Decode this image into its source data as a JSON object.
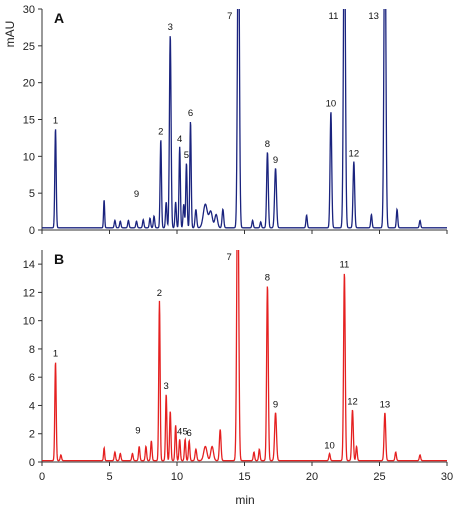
{
  "chart_data": {
    "type": "line",
    "ylabel": "mAU",
    "xlabel": "min",
    "xlim": [
      0,
      30
    ],
    "xticks": [
      0,
      5,
      10,
      15,
      20,
      25,
      30
    ],
    "grid": false,
    "panels": [
      {
        "label": "A",
        "color": "#1a237e",
        "ylim": [
          0,
          30
        ],
        "yticks": [
          0,
          5,
          10,
          15,
          20,
          25,
          30
        ],
        "baseline": 0.3,
        "peaks": [
          {
            "t": 1.0,
            "h": 13.5,
            "w": 0.05,
            "label": "1"
          },
          {
            "t": 4.6,
            "h": 3.8,
            "w": 0.04
          },
          {
            "t": 5.4,
            "h": 1.0,
            "w": 0.05
          },
          {
            "t": 5.8,
            "h": 0.9,
            "w": 0.05
          },
          {
            "t": 6.4,
            "h": 1.0,
            "w": 0.05
          },
          {
            "t": 7.0,
            "h": 0.9,
            "w": 0.05
          },
          {
            "t": 7.5,
            "h": 1.1,
            "w": 0.05
          },
          {
            "t": 8.0,
            "h": 1.3,
            "w": 0.05
          },
          {
            "t": 8.3,
            "h": 1.6,
            "w": 0.05
          },
          {
            "t": 8.8,
            "h": 12.0,
            "w": 0.05,
            "label": "2"
          },
          {
            "t": 9.2,
            "h": 3.5,
            "w": 0.05
          },
          {
            "t": 9.5,
            "h": 26.2,
            "w": 0.06,
            "label": "3"
          },
          {
            "t": 9.9,
            "h": 3.5,
            "w": 0.05
          },
          {
            "t": 10.2,
            "h": 11.0,
            "w": 0.05,
            "label": "4"
          },
          {
            "t": 10.5,
            "h": 3.2,
            "w": 0.05
          },
          {
            "t": 10.7,
            "h": 8.8,
            "w": 0.05,
            "label": "5"
          },
          {
            "t": 11.0,
            "h": 14.5,
            "w": 0.05,
            "label": "6"
          },
          {
            "t": 11.4,
            "h": 2.5,
            "w": 0.06
          },
          {
            "t": 12.1,
            "h": 3.2,
            "w": 0.15
          },
          {
            "t": 12.5,
            "h": 2.2,
            "w": 0.12
          },
          {
            "t": 12.9,
            "h": 1.8,
            "w": 0.1
          },
          {
            "t": 13.4,
            "h": 2.5,
            "w": 0.06
          },
          {
            "t": 14.55,
            "h": 45,
            "w": 0.07,
            "label": "7"
          },
          {
            "t": 15.6,
            "h": 1.0,
            "w": 0.05
          },
          {
            "t": 16.2,
            "h": 0.8,
            "w": 0.05
          },
          {
            "t": 16.7,
            "h": 10.3,
            "w": 0.06,
            "label": "8"
          },
          {
            "t": 17.3,
            "h": 8.1,
            "w": 0.07,
            "label": "9"
          },
          {
            "t": 19.6,
            "h": 1.7,
            "w": 0.05
          },
          {
            "t": 21.4,
            "h": 15.8,
            "w": 0.06,
            "label": "10"
          },
          {
            "t": 22.4,
            "h": 45,
            "w": 0.07,
            "label": "11"
          },
          {
            "t": 23.1,
            "h": 9.0,
            "w": 0.06,
            "label": "12"
          },
          {
            "t": 24.4,
            "h": 1.8,
            "w": 0.05
          },
          {
            "t": 25.4,
            "h": 45,
            "w": 0.07,
            "label": "13"
          },
          {
            "t": 26.3,
            "h": 2.5,
            "w": 0.05
          },
          {
            "t": 28.0,
            "h": 1.0,
            "w": 0.05
          }
        ],
        "extra_labels": [
          {
            "t": 7.0,
            "y": 4.5,
            "text": "9"
          }
        ]
      },
      {
        "label": "B",
        "color": "#e52020",
        "ylim": [
          0,
          15
        ],
        "yticks": [
          0,
          2,
          4,
          6,
          8,
          10,
          12,
          14
        ],
        "baseline": 0.1,
        "peaks": [
          {
            "t": 1.0,
            "h": 7.0,
            "w": 0.05,
            "label": "1"
          },
          {
            "t": 1.4,
            "h": 0.4,
            "w": 0.05
          },
          {
            "t": 4.6,
            "h": 0.9,
            "w": 0.04
          },
          {
            "t": 5.4,
            "h": 0.6,
            "w": 0.05
          },
          {
            "t": 5.8,
            "h": 0.5,
            "w": 0.05
          },
          {
            "t": 6.7,
            "h": 0.5,
            "w": 0.05
          },
          {
            "t": 7.2,
            "h": 1.0,
            "w": 0.05
          },
          {
            "t": 7.7,
            "h": 1.0,
            "w": 0.05
          },
          {
            "t": 8.1,
            "h": 1.4,
            "w": 0.05
          },
          {
            "t": 8.7,
            "h": 11.3,
            "w": 0.05,
            "label": "2"
          },
          {
            "t": 9.2,
            "h": 4.7,
            "w": 0.05,
            "label": "3"
          },
          {
            "t": 9.5,
            "h": 3.5,
            "w": 0.05
          },
          {
            "t": 9.9,
            "h": 2.5,
            "w": 0.05
          },
          {
            "t": 10.2,
            "h": 1.5,
            "w": 0.05,
            "label": "4"
          },
          {
            "t": 10.6,
            "h": 1.5,
            "w": 0.05,
            "label": "5"
          },
          {
            "t": 10.9,
            "h": 1.4,
            "w": 0.05,
            "label": "6"
          },
          {
            "t": 11.4,
            "h": 0.8,
            "w": 0.06
          },
          {
            "t": 12.1,
            "h": 1.0,
            "w": 0.12
          },
          {
            "t": 12.6,
            "h": 1.0,
            "w": 0.1
          },
          {
            "t": 13.2,
            "h": 2.2,
            "w": 0.06
          },
          {
            "t": 14.5,
            "h": 22,
            "w": 0.07,
            "label": "7"
          },
          {
            "t": 15.7,
            "h": 0.6,
            "w": 0.05
          },
          {
            "t": 16.1,
            "h": 0.8,
            "w": 0.05
          },
          {
            "t": 16.7,
            "h": 12.4,
            "w": 0.06,
            "label": "8"
          },
          {
            "t": 17.3,
            "h": 3.4,
            "w": 0.07,
            "label": "9"
          },
          {
            "t": 21.3,
            "h": 0.5,
            "w": 0.05,
            "label": "10"
          },
          {
            "t": 22.4,
            "h": 13.3,
            "w": 0.06,
            "label": "11"
          },
          {
            "t": 23.0,
            "h": 3.6,
            "w": 0.06,
            "label": "12"
          },
          {
            "t": 23.3,
            "h": 1.0,
            "w": 0.05
          },
          {
            "t": 25.4,
            "h": 3.4,
            "w": 0.06,
            "label": "13"
          },
          {
            "t": 26.2,
            "h": 0.6,
            "w": 0.05
          },
          {
            "t": 28.0,
            "h": 0.4,
            "w": 0.05
          }
        ],
        "extra_labels": [
          {
            "t": 7.1,
            "y": 2.0,
            "text": "9"
          }
        ]
      }
    ]
  }
}
